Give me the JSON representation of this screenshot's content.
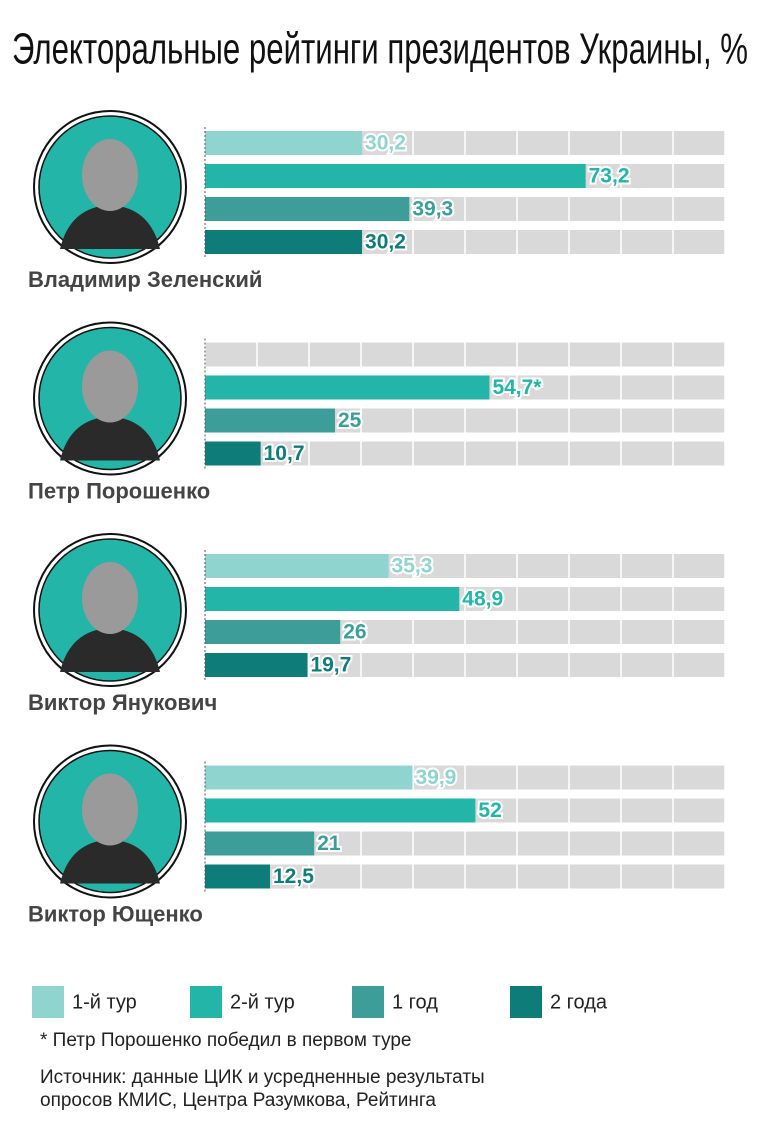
{
  "chart_data": {
    "type": "bar",
    "orientation": "horizontal",
    "title": "Электоральные рейтинги президентов Украины, %",
    "categories": [
      "Владимир Зеленский",
      "Петр Порошенко",
      "Виктор Янукович",
      "Виктор Ющенко"
    ],
    "series": [
      {
        "name": "1-й тур",
        "color": "#8fd4cf",
        "values": [
          30.2,
          null,
          35.3,
          39.9
        ],
        "value_labels": [
          "30,2",
          null,
          "35,3",
          "39,9"
        ]
      },
      {
        "name": "2-й тур",
        "color": "#22b5a8",
        "values": [
          73.2,
          54.7,
          48.9,
          52
        ],
        "value_labels": [
          "73,2",
          "54,7*",
          "48,9",
          "52"
        ]
      },
      {
        "name": "1 год",
        "color": "#3d9e99",
        "values": [
          39.3,
          25,
          26,
          21
        ],
        "value_labels": [
          "39,3",
          "25",
          "26",
          "21"
        ]
      },
      {
        "name": "2 года",
        "color": "#0e7c78",
        "values": [
          30.2,
          10.7,
          19.7,
          12.5
        ],
        "value_labels": [
          "30,2",
          "10,7",
          "19,7",
          "12,5"
        ]
      }
    ],
    "xlim": [
      0,
      100
    ],
    "xticks": [
      0,
      10,
      20,
      30,
      40,
      50,
      60,
      70,
      80,
      90,
      100
    ],
    "grid": true,
    "track_color": "#d9d9d9",
    "footnote": "* Петр Порошенко победил в первом туре",
    "source_lines": [
      "Источник: данные ЦИК и усредненные результаты",
      "опросов КМИС, Центра Разумкова, Рейтинга"
    ]
  }
}
